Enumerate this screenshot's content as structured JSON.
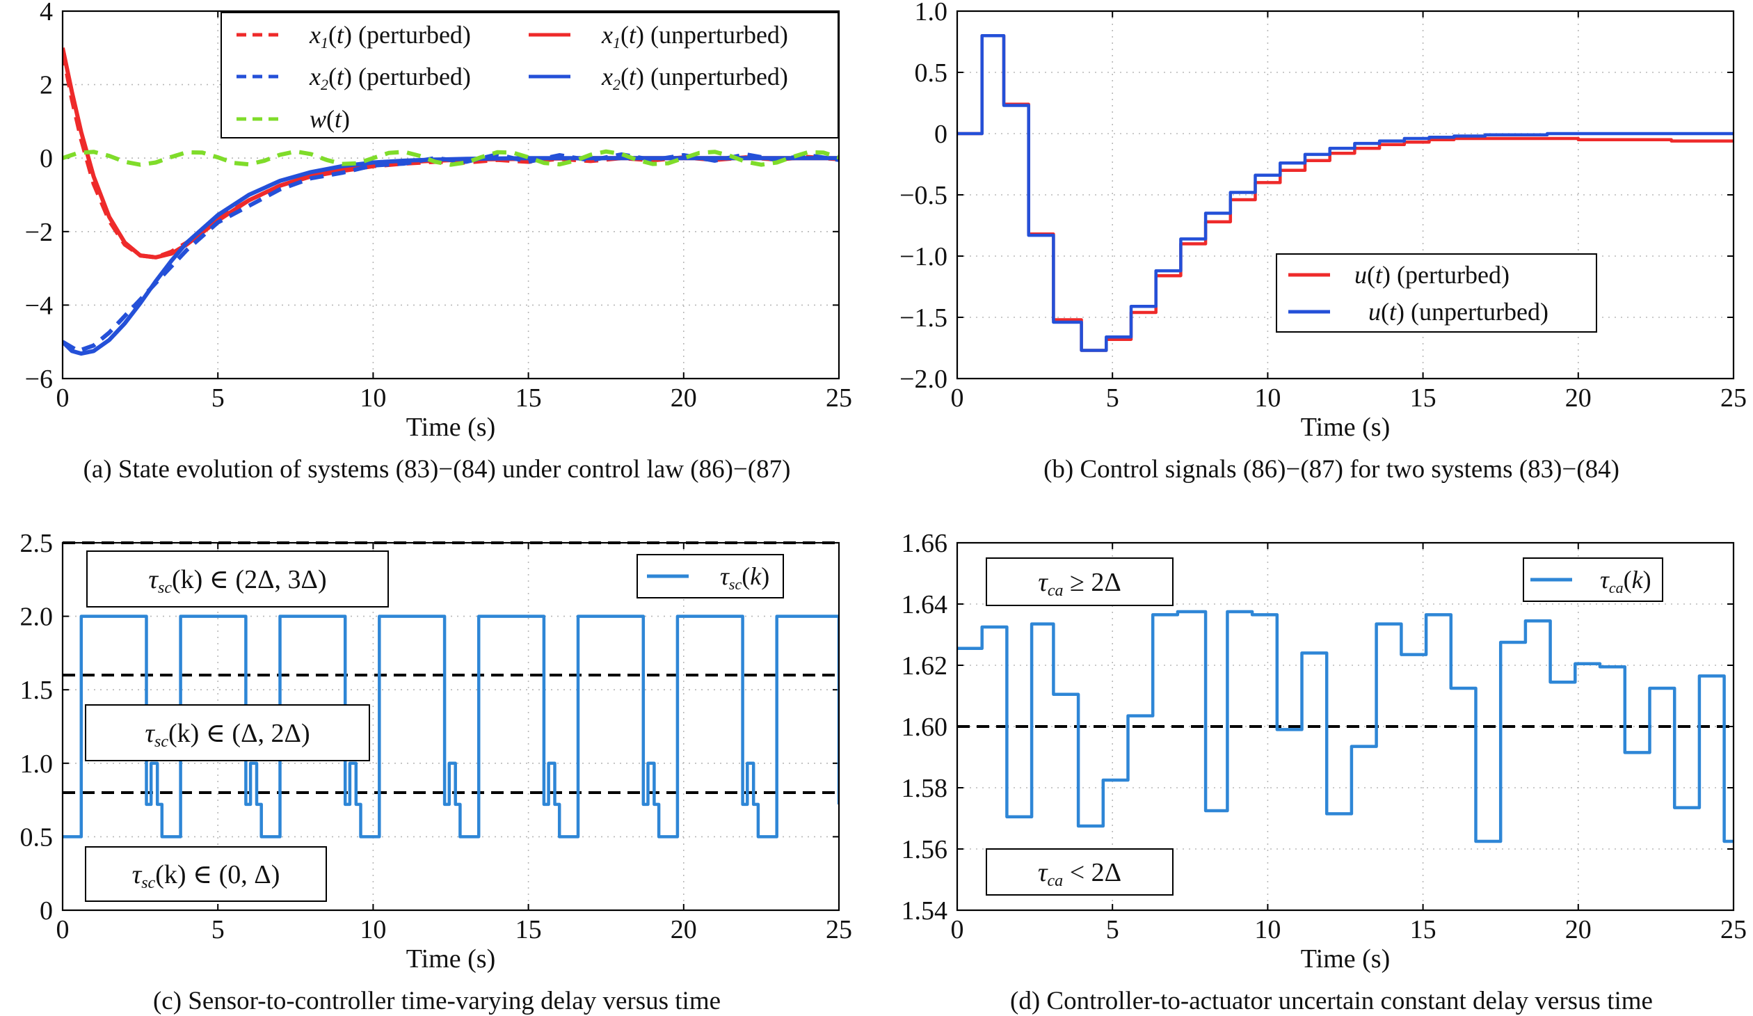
{
  "panels": [
    {
      "id": "a",
      "caption": "(a) State evolution of systems (83)−(84) under control law (86)−(87)",
      "xlabel": "Time (s)",
      "xticks": [
        "0",
        "5",
        "10",
        "15",
        "20",
        "25"
      ],
      "yticks": [
        "−6",
        "−4",
        "−2",
        "0",
        "2",
        "4"
      ],
      "legend": [
        {
          "math": "x",
          "sub": "1",
          "arg": "(t)",
          "text": " (perturbed)",
          "color": "#ee2a2a",
          "dash": true
        },
        {
          "math": "x",
          "sub": "1",
          "arg": "(t)",
          "text": " (unperturbed)",
          "color": "#ee2a2a",
          "dash": false
        },
        {
          "math": "x",
          "sub": "2",
          "arg": "(t)",
          "text": " (perturbed)",
          "color": "#2450d8",
          "dash": true
        },
        {
          "math": "x",
          "sub": "2",
          "arg": "(t)",
          "text": " (unperturbed)",
          "color": "#2450d8",
          "dash": false
        },
        {
          "math": "w",
          "sub": "",
          "arg": "(t)",
          "text": "",
          "color": "#7fdc2a",
          "dash": true
        }
      ]
    },
    {
      "id": "b",
      "caption": "(b) Control signals (86)−(87) for two systems (83)−(84)",
      "xlabel": "Time (s)",
      "xticks": [
        "0",
        "5",
        "10",
        "15",
        "20",
        "25"
      ],
      "yticks": [
        "−2.0",
        "−1.5",
        "−1.0",
        "−0.5",
        "0",
        "0.5",
        "1.0"
      ],
      "legend": [
        {
          "math": "u",
          "sub": "",
          "arg": "(t)",
          "text": " (perturbed)",
          "color": "#ee2a2a",
          "dash": false
        },
        {
          "math": "u",
          "sub": "",
          "arg": "(t)",
          "text": " (unperturbed)",
          "color": "#2450d8",
          "dash": false
        }
      ]
    },
    {
      "id": "c",
      "caption": "(c) Sensor-to-controller time-varying delay versus time",
      "xlabel": "Time (s)",
      "xticks": [
        "0",
        "5",
        "10",
        "15",
        "20",
        "25"
      ],
      "yticks": [
        "0",
        "0.5",
        "1.0",
        "1.5",
        "2.0",
        "2.5"
      ],
      "legend": [
        {
          "math": "τ",
          "sub": "sc",
          "arg": "(k)",
          "text": "",
          "color": "#2e86d6",
          "dash": false
        }
      ],
      "annotations": [
        {
          "math": "τ",
          "sub": "sc",
          "rest": "(k) ∈ (2Δ, 3Δ)"
        },
        {
          "math": "τ",
          "sub": "sc",
          "rest": "(k) ∈ (Δ, 2Δ)"
        },
        {
          "math": "τ",
          "sub": "sc",
          "rest": "(k) ∈ (0, Δ)"
        }
      ]
    },
    {
      "id": "d",
      "caption": "(d) Controller-to-actuator uncertain constant delay versus time",
      "xlabel": "Time (s)",
      "xticks": [
        "0",
        "5",
        "10",
        "15",
        "20",
        "25"
      ],
      "yticks": [
        "1.54",
        "1.56",
        "1.58",
        "1.60",
        "1.62",
        "1.64",
        "1.66"
      ],
      "legend": [
        {
          "math": "τ",
          "sub": "ca",
          "arg": "(k)",
          "text": "",
          "color": "#2e86d6",
          "dash": false
        }
      ],
      "annotations": [
        {
          "math": "τ",
          "sub": "ca",
          "rest": " ≥ 2Δ"
        },
        {
          "math": "τ",
          "sub": "ca",
          "rest": " < 2Δ"
        }
      ]
    }
  ],
  "chart_data": [
    {
      "panel": "a",
      "type": "line",
      "xlim": [
        0,
        25
      ],
      "ylim": [
        -6,
        4
      ],
      "grid": true,
      "legend_position": "top-right",
      "series": [
        {
          "name": "x1(t) (perturbed)",
          "color": "#ee2a2a",
          "dash": true,
          "x": [
            0,
            0.3,
            0.6,
            1,
            1.5,
            2,
            2.5,
            3,
            3.5,
            4,
            5,
            6,
            7,
            8,
            9,
            10,
            11,
            12,
            13,
            14,
            15,
            16,
            17,
            18,
            19,
            20,
            21,
            22,
            23,
            24,
            25
          ],
          "y": [
            2.9,
            1.6,
            0.5,
            -0.7,
            -1.7,
            -2.35,
            -2.65,
            -2.7,
            -2.55,
            -2.3,
            -1.65,
            -1.15,
            -0.75,
            -0.5,
            -0.35,
            -0.22,
            -0.15,
            -0.1,
            -0.12,
            -0.05,
            -0.1,
            -0.02,
            -0.08,
            0.0,
            -0.06,
            0.02,
            -0.05,
            0.02,
            -0.04,
            0.03,
            -0.03
          ]
        },
        {
          "name": "x1(t) (unperturbed)",
          "color": "#ee2a2a",
          "dash": false,
          "x": [
            0,
            0.3,
            0.6,
            1,
            1.5,
            2,
            2.5,
            3,
            3.5,
            4,
            5,
            6,
            7,
            8,
            9,
            10,
            11,
            12,
            13,
            14,
            15,
            16,
            17,
            18,
            19,
            20,
            21,
            22,
            23,
            24,
            25
          ],
          "y": [
            3.0,
            1.8,
            0.7,
            -0.5,
            -1.6,
            -2.3,
            -2.65,
            -2.7,
            -2.6,
            -2.35,
            -1.7,
            -1.15,
            -0.75,
            -0.48,
            -0.3,
            -0.18,
            -0.11,
            -0.07,
            -0.04,
            -0.03,
            -0.02,
            -0.01,
            0,
            0,
            0,
            0,
            0,
            0,
            0,
            0,
            0
          ]
        },
        {
          "name": "x2(t) (perturbed)",
          "color": "#2450d8",
          "dash": true,
          "x": [
            0,
            0.5,
            1,
            1.5,
            2,
            2.5,
            3,
            3.5,
            4,
            5,
            6,
            7,
            8,
            9,
            10,
            11,
            12,
            13,
            14,
            15,
            16,
            17,
            18,
            19,
            20,
            21,
            22,
            23,
            24,
            25
          ],
          "y": [
            -5.0,
            -5.25,
            -5.1,
            -4.75,
            -4.3,
            -3.85,
            -3.4,
            -2.95,
            -2.5,
            -1.75,
            -1.3,
            -0.85,
            -0.55,
            -0.4,
            -0.2,
            -0.15,
            0.0,
            -0.1,
            0.1,
            -0.1,
            0.08,
            -0.06,
            0.1,
            -0.05,
            0.08,
            -0.07,
            0.1,
            -0.05,
            0.08,
            -0.05
          ]
        },
        {
          "name": "x2(t) (unperturbed)",
          "color": "#2450d8",
          "dash": false,
          "x": [
            0,
            0.3,
            0.6,
            1,
            1.5,
            2,
            2.5,
            3,
            3.5,
            4,
            5,
            6,
            7,
            8,
            9,
            10,
            11,
            12,
            13,
            14,
            15,
            16,
            17,
            18,
            19,
            20,
            21,
            22,
            23,
            24,
            25
          ],
          "y": [
            -5.0,
            -5.25,
            -5.32,
            -5.25,
            -4.95,
            -4.5,
            -3.95,
            -3.35,
            -2.8,
            -2.3,
            -1.55,
            -1.0,
            -0.62,
            -0.38,
            -0.22,
            -0.12,
            -0.07,
            -0.04,
            -0.02,
            -0.01,
            0,
            0,
            0,
            0,
            0,
            0,
            0,
            0,
            0,
            0,
            0
          ]
        },
        {
          "name": "w(t)",
          "color": "#7fdc2a",
          "dash": true,
          "x": [
            0,
            0.5,
            1,
            1.5,
            2,
            2.5,
            3,
            3.5,
            4,
            4.5,
            5,
            5.5,
            6,
            6.5,
            7,
            7.5,
            8,
            8.5,
            9,
            9.5,
            10,
            10.5,
            11,
            11.5,
            12,
            12.5,
            13,
            13.5,
            14,
            14.5,
            15,
            15.5,
            16,
            16.5,
            17,
            17.5,
            18,
            18.5,
            19,
            19.5,
            20,
            20.5,
            21,
            21.5,
            22,
            22.5,
            23,
            23.5,
            24,
            24.5,
            25
          ],
          "y": [
            0,
            0.14,
            0.17,
            0.06,
            -0.1,
            -0.18,
            -0.12,
            0.03,
            0.16,
            0.15,
            0.02,
            -0.13,
            -0.17,
            -0.07,
            0.09,
            0.18,
            0.11,
            -0.05,
            -0.16,
            -0.14,
            0.0,
            0.14,
            0.17,
            0.06,
            -0.1,
            -0.18,
            -0.12,
            0.03,
            0.16,
            0.15,
            0.02,
            -0.13,
            -0.17,
            -0.07,
            0.09,
            0.18,
            0.11,
            -0.05,
            -0.16,
            -0.14,
            0.0,
            0.14,
            0.17,
            0.06,
            -0.1,
            -0.18,
            -0.12,
            0.03,
            0.16,
            0.15,
            0.02
          ]
        }
      ]
    },
    {
      "panel": "b",
      "type": "line",
      "step": true,
      "xlim": [
        0,
        25
      ],
      "ylim": [
        -2.0,
        1.0
      ],
      "grid": true,
      "legend_position": "center-right",
      "series": [
        {
          "name": "u(t) (perturbed)",
          "color": "#ee2a2a",
          "x": [
            0,
            0.8,
            1.5,
            2.3,
            3.1,
            4.0,
            4.8,
            5.6,
            6.4,
            7.2,
            8.0,
            8.8,
            9.6,
            10.4,
            11.2,
            12.0,
            12.8,
            13.6,
            14.4,
            15.2,
            16,
            17,
            18,
            19,
            20,
            21,
            22,
            23,
            24,
            25
          ],
          "y": [
            0,
            0.8,
            0.24,
            -0.82,
            -1.52,
            -1.77,
            -1.68,
            -1.46,
            -1.16,
            -0.9,
            -0.72,
            -0.54,
            -0.4,
            -0.3,
            -0.22,
            -0.16,
            -0.12,
            -0.09,
            -0.07,
            -0.05,
            -0.04,
            -0.04,
            -0.04,
            -0.04,
            -0.05,
            -0.05,
            -0.05,
            -0.06,
            -0.06,
            -0.06
          ]
        },
        {
          "name": "u(t) (unperturbed)",
          "color": "#2450d8",
          "x": [
            0,
            0.8,
            1.5,
            2.3,
            3.1,
            4.0,
            4.8,
            5.6,
            6.4,
            7.2,
            8.0,
            8.8,
            9.6,
            10.4,
            11.2,
            12.0,
            12.8,
            13.6,
            14.4,
            15.2,
            16,
            17,
            18,
            19,
            20,
            21,
            22,
            23,
            24,
            25
          ],
          "y": [
            0,
            0.8,
            0.23,
            -0.83,
            -1.54,
            -1.77,
            -1.66,
            -1.41,
            -1.12,
            -0.86,
            -0.65,
            -0.48,
            -0.34,
            -0.24,
            -0.17,
            -0.12,
            -0.08,
            -0.06,
            -0.04,
            -0.03,
            -0.02,
            -0.01,
            -0.01,
            0,
            0,
            0,
            0,
            0,
            0,
            0
          ]
        }
      ]
    },
    {
      "panel": "c",
      "type": "line",
      "step": true,
      "xlim": [
        0,
        25
      ],
      "ylim": [
        0,
        2.5
      ],
      "grid": true,
      "legend_position": "top-right",
      "thresholds": [
        2.5,
        1.6,
        0.8
      ],
      "series": [
        {
          "name": "τsc(k)",
          "color": "#2e86d6",
          "x": [
            0,
            0.6,
            2.7,
            2.85,
            3.05,
            3.2,
            3.35,
            3.8,
            5.9,
            6.05,
            6.25,
            6.4,
            6.55,
            7.0,
            9.1,
            9.25,
            9.45,
            9.6,
            9.75,
            10.2,
            12.3,
            12.45,
            12.65,
            12.8,
            12.95,
            13.4,
            15.5,
            15.65,
            15.85,
            16.0,
            16.15,
            16.6,
            18.7,
            18.85,
            19.05,
            19.2,
            19.35,
            19.8,
            21.9,
            22.05,
            22.25,
            22.4,
            22.55,
            23.0,
            25
          ],
          "y": [
            0.5,
            2.0,
            0.72,
            1.0,
            0.72,
            0.5,
            0.5,
            2.0,
            0.72,
            1.0,
            0.72,
            0.5,
            0.5,
            2.0,
            0.72,
            1.0,
            0.72,
            0.5,
            0.5,
            2.0,
            0.72,
            1.0,
            0.72,
            0.5,
            0.5,
            2.0,
            0.72,
            1.0,
            0.72,
            0.5,
            0.5,
            2.0,
            0.72,
            1.0,
            0.72,
            0.5,
            0.5,
            2.0,
            0.72,
            1.0,
            0.72,
            0.5,
            0.5,
            2.0,
            0.72
          ]
        }
      ]
    },
    {
      "panel": "d",
      "type": "line",
      "step": true,
      "xlim": [
        0,
        25
      ],
      "ylim": [
        1.54,
        1.66
      ],
      "grid": true,
      "legend_position": "top-right",
      "thresholds": [
        1.6
      ],
      "series": [
        {
          "name": "τca(k)",
          "color": "#2e86d6",
          "x": [
            0,
            0.8,
            1.6,
            2.4,
            3.1,
            3.9,
            4.7,
            5.5,
            6.3,
            7.1,
            8.0,
            8.7,
            9.5,
            10.3,
            11.1,
            11.9,
            12.7,
            13.5,
            14.3,
            15.1,
            15.9,
            16.7,
            17.5,
            18.3,
            19.1,
            19.9,
            20.7,
            21.5,
            22.3,
            23.1,
            23.9,
            24.7,
            25
          ],
          "y": [
            1.6255,
            1.6325,
            1.5705,
            1.6335,
            1.6105,
            1.5675,
            1.5825,
            1.6035,
            1.6365,
            1.6375,
            1.5725,
            1.6375,
            1.6365,
            1.599,
            1.624,
            1.5715,
            1.5935,
            1.6335,
            1.6235,
            1.6365,
            1.6125,
            1.5625,
            1.6275,
            1.6345,
            1.6145,
            1.6205,
            1.6195,
            1.5915,
            1.6125,
            1.5735,
            1.6165,
            1.5625,
            1.5625
          ]
        }
      ]
    }
  ]
}
